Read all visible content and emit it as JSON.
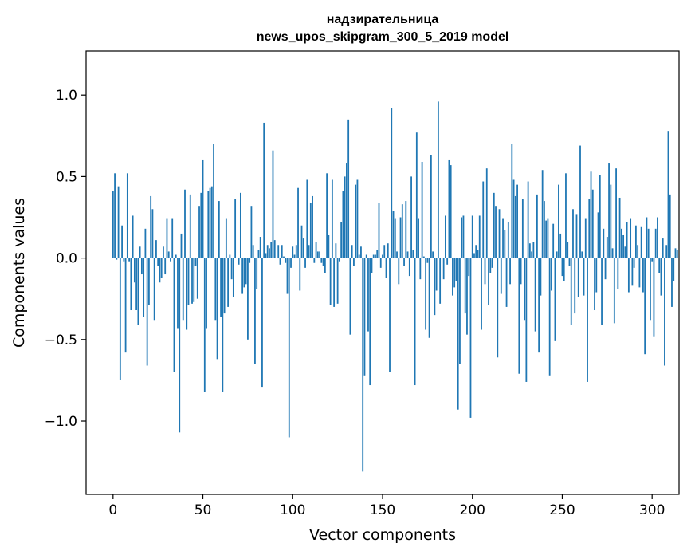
{
  "chart_data": {
    "type": "bar",
    "title_line1": "надзирательница",
    "title_line2": "news_upos_skipgram_300_5_2019 model",
    "xlabel": "Vector components",
    "ylabel": "Components values",
    "xlim": [
      -15,
      315
    ],
    "ylim": [
      -1.45,
      1.27
    ],
    "x_ticks": [
      0,
      50,
      100,
      150,
      200,
      250,
      300
    ],
    "y_ticks": [
      -1.0,
      -0.5,
      0.0,
      0.5,
      1.0
    ],
    "x_tick_labels": [
      "0",
      "50",
      "100",
      "150",
      "200",
      "250",
      "300"
    ],
    "y_tick_labels": [
      "−1.0",
      "−0.5",
      "0.0",
      "0.5",
      "1.0"
    ],
    "bar_color": "#1f77b4",
    "values": [
      0.41,
      0.52,
      -0.01,
      0.44,
      -0.75,
      0.2,
      -0.02,
      -0.58,
      0.52,
      -0.02,
      -0.32,
      0.26,
      -0.15,
      -0.32,
      -0.41,
      0.07,
      -0.1,
      -0.36,
      0.18,
      -0.66,
      -0.29,
      0.38,
      0.3,
      -0.38,
      0.11,
      -0.05,
      -0.15,
      -0.12,
      0.07,
      -0.1,
      0.24,
      0.04,
      -0.02,
      0.24,
      -0.7,
      0.02,
      -0.43,
      -1.07,
      0.15,
      -0.38,
      0.42,
      -0.44,
      -0.29,
      0.39,
      -0.28,
      -0.27,
      -0.05,
      -0.25,
      0.32,
      0.4,
      0.6,
      -0.82,
      -0.43,
      0.41,
      0.43,
      0.44,
      0.7,
      -0.38,
      -0.62,
      0.35,
      -0.36,
      -0.82,
      -0.34,
      0.24,
      -0.3,
      0.02,
      -0.13,
      -0.24,
      0.36,
      0.0,
      -0.04,
      0.4,
      -0.22,
      -0.18,
      -0.16,
      -0.5,
      -0.03,
      0.32,
      0.08,
      -0.65,
      -0.19,
      0.05,
      0.13,
      -0.79,
      0.83,
      0.03,
      0.08,
      0.06,
      0.1,
      0.66,
      0.11,
      0.0,
      0.08,
      -0.04,
      0.08,
      0.01,
      -0.03,
      -0.22,
      -1.1,
      -0.06,
      0.07,
      0.02,
      0.08,
      0.43,
      -0.2,
      0.2,
      0.12,
      -0.06,
      0.48,
      0.08,
      0.34,
      0.38,
      -0.03,
      0.1,
      0.04,
      0.04,
      -0.03,
      -0.05,
      -0.09,
      0.52,
      0.14,
      -0.29,
      0.48,
      -0.3,
      0.09,
      -0.28,
      -0.02,
      0.22,
      0.41,
      0.5,
      0.58,
      0.85,
      -0.47,
      0.08,
      -0.05,
      0.45,
      0.48,
      0.02,
      0.07,
      -1.31,
      -0.72,
      0.02,
      -0.45,
      -0.78,
      -0.09,
      0.02,
      0.02,
      0.05,
      0.34,
      -0.06,
      0.02,
      0.08,
      -0.12,
      0.09,
      -0.7,
      0.92,
      0.29,
      0.24,
      0.04,
      -0.16,
      0.25,
      0.33,
      -0.05,
      0.35,
      0.04,
      -0.11,
      0.5,
      0.05,
      -0.78,
      0.77,
      0.24,
      -0.13,
      0.59,
      0.01,
      -0.44,
      -0.03,
      -0.49,
      0.63,
      0.04,
      -0.35,
      -0.2,
      0.96,
      -0.28,
      0.0,
      -0.13,
      0.26,
      -0.04,
      0.6,
      0.57,
      -0.23,
      -0.18,
      -0.14,
      -0.93,
      -0.65,
      0.25,
      0.26,
      -0.34,
      -0.47,
      -0.11,
      -0.98,
      0.26,
      0.03,
      0.08,
      0.05,
      0.26,
      -0.44,
      0.47,
      -0.16,
      0.55,
      -0.29,
      -0.09,
      -0.06,
      0.4,
      0.32,
      -0.61,
      0.3,
      -0.22,
      0.24,
      0.17,
      -0.3,
      0.22,
      -0.16,
      0.7,
      0.48,
      0.38,
      0.45,
      -0.71,
      -0.16,
      0.36,
      -0.38,
      -0.76,
      0.47,
      0.09,
      0.04,
      0.1,
      -0.45,
      0.39,
      -0.58,
      -0.23,
      0.54,
      0.35,
      0.23,
      0.24,
      -0.72,
      -0.2,
      0.21,
      -0.51,
      0.04,
      0.45,
      0.15,
      -0.11,
      -0.14,
      0.52,
      0.1,
      -0.05,
      -0.41,
      0.3,
      -0.34,
      0.27,
      -0.24,
      0.69,
      0.04,
      -0.23,
      0.24,
      -0.76,
      0.36,
      0.53,
      0.42,
      -0.32,
      -0.21,
      0.28,
      0.51,
      -0.41,
      0.18,
      -0.13,
      0.13,
      0.58,
      0.45,
      0.06,
      -0.4,
      0.55,
      -0.19,
      0.37,
      0.18,
      0.14,
      0.07,
      0.22,
      -0.21,
      0.24,
      -0.17,
      -0.06,
      0.2,
      0.08,
      -0.18,
      0.19,
      -0.21,
      -0.59,
      0.25,
      0.18,
      -0.38,
      -0.02,
      -0.48,
      0.18,
      0.25,
      -0.09,
      -0.23,
      0.12,
      -0.66,
      0.08,
      0.78,
      0.39,
      -0.3,
      -0.14,
      0.06,
      0.05
    ]
  }
}
